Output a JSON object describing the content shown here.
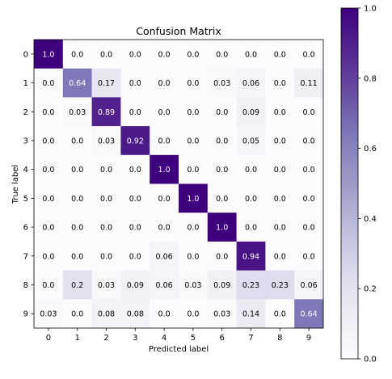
{
  "chart_data": {
    "type": "heatmap",
    "title": "Confusion Matrix",
    "xlabel": "Predicted label",
    "ylabel": "True label",
    "x_categories": [
      "0",
      "1",
      "2",
      "3",
      "4",
      "5",
      "6",
      "7",
      "8",
      "9"
    ],
    "y_categories": [
      "0",
      "1",
      "2",
      "3",
      "4",
      "5",
      "6",
      "7",
      "8",
      "9"
    ],
    "values": [
      [
        1.0,
        0.0,
        0.0,
        0.0,
        0.0,
        0.0,
        0.0,
        0.0,
        0.0,
        0.0
      ],
      [
        0.0,
        0.64,
        0.17,
        0.0,
        0.0,
        0.0,
        0.03,
        0.06,
        0.0,
        0.11
      ],
      [
        0.0,
        0.03,
        0.89,
        0.0,
        0.0,
        0.0,
        0.0,
        0.09,
        0.0,
        0.0
      ],
      [
        0.0,
        0.0,
        0.03,
        0.92,
        0.0,
        0.0,
        0.0,
        0.05,
        0.0,
        0.0
      ],
      [
        0.0,
        0.0,
        0.0,
        0.0,
        1.0,
        0.0,
        0.0,
        0.0,
        0.0,
        0.0
      ],
      [
        0.0,
        0.0,
        0.0,
        0.0,
        0.0,
        1.0,
        0.0,
        0.0,
        0.0,
        0.0
      ],
      [
        0.0,
        0.0,
        0.0,
        0.0,
        0.0,
        0.0,
        1.0,
        0.0,
        0.0,
        0.0
      ],
      [
        0.0,
        0.0,
        0.0,
        0.0,
        0.06,
        0.0,
        0.0,
        0.94,
        0.0,
        0.0
      ],
      [
        0.0,
        0.2,
        0.03,
        0.09,
        0.06,
        0.03,
        0.09,
        0.23,
        0.23,
        0.06
      ],
      [
        0.03,
        0.0,
        0.08,
        0.08,
        0.0,
        0.0,
        0.03,
        0.14,
        0.0,
        0.64
      ]
    ],
    "value_labels": [
      [
        "1.0",
        "0.0",
        "0.0",
        "0.0",
        "0.0",
        "0.0",
        "0.0",
        "0.0",
        "0.0",
        "0.0"
      ],
      [
        "0.0",
        "0.64",
        "0.17",
        "0.0",
        "0.0",
        "0.0",
        "0.03",
        "0.06",
        "0.0",
        "0.11"
      ],
      [
        "0.0",
        "0.03",
        "0.89",
        "0.0",
        "0.0",
        "0.0",
        "0.0",
        "0.09",
        "0.0",
        "0.0"
      ],
      [
        "0.0",
        "0.0",
        "0.03",
        "0.92",
        "0.0",
        "0.0",
        "0.0",
        "0.05",
        "0.0",
        "0.0"
      ],
      [
        "0.0",
        "0.0",
        "0.0",
        "0.0",
        "1.0",
        "0.0",
        "0.0",
        "0.0",
        "0.0",
        "0.0"
      ],
      [
        "0.0",
        "0.0",
        "0.0",
        "0.0",
        "0.0",
        "1.0",
        "0.0",
        "0.0",
        "0.0",
        "0.0"
      ],
      [
        "0.0",
        "0.0",
        "0.0",
        "0.0",
        "0.0",
        "0.0",
        "1.0",
        "0.0",
        "0.0",
        "0.0"
      ],
      [
        "0.0",
        "0.0",
        "0.0",
        "0.0",
        "0.06",
        "0.0",
        "0.0",
        "0.94",
        "0.0",
        "0.0"
      ],
      [
        "0.0",
        "0.2",
        "0.03",
        "0.09",
        "0.06",
        "0.03",
        "0.09",
        "0.23",
        "0.23",
        "0.06"
      ],
      [
        "0.03",
        "0.0",
        "0.08",
        "0.08",
        "0.0",
        "0.0",
        "0.03",
        "0.14",
        "0.0",
        "0.64"
      ]
    ],
    "colormap": "Purples",
    "vmin": 0.0,
    "vmax": 1.0,
    "colorbar_ticks": [
      "0.0",
      "0.2",
      "0.4",
      "0.6",
      "0.8",
      "1.0"
    ],
    "colorbar_tick_values": [
      0.0,
      0.2,
      0.4,
      0.6,
      0.8,
      1.0
    ],
    "grid": false
  }
}
